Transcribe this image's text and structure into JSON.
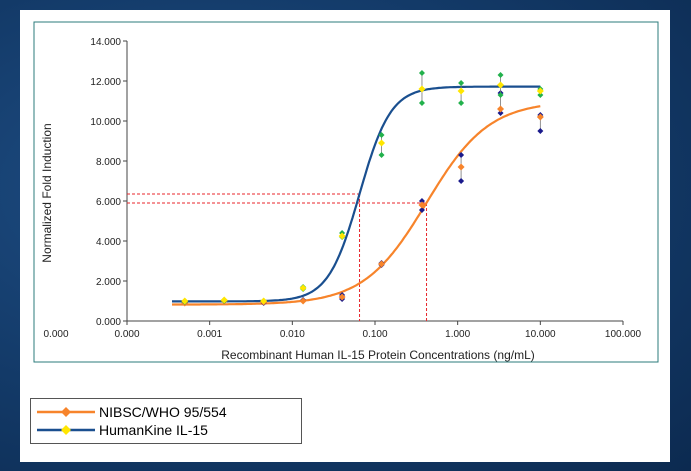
{
  "chart_data": {
    "type": "scatter",
    "title": "",
    "xlabel": "Recombinant Human IL-15 Protein Concentrations (ng/mL)",
    "ylabel": "Normalized Fold Induction",
    "x_scale": "log",
    "xlim": [
      0.0001,
      100
    ],
    "ylim": [
      0,
      14
    ],
    "x_tick_values": [
      0.0001,
      0.001,
      0.01,
      0.1,
      1,
      10,
      100
    ],
    "x_tick_labels": [
      "0.000",
      "0.000",
      "0.001",
      "0.010",
      "0.100",
      "1.000",
      "10.000",
      "100.000"
    ],
    "x_tick_positions": [
      0.0001,
      0.0001,
      0.001,
      0.01,
      0.1,
      1,
      10,
      100
    ],
    "y_ticks": [
      0,
      2,
      4,
      6,
      8,
      10,
      12,
      14
    ],
    "y_tick_labels": [
      "0.000",
      "2.000",
      "4.000",
      "6.000",
      "8.000",
      "10.000",
      "12.000",
      "14.000"
    ],
    "grid": false,
    "legend_position": "bottom-left outside",
    "series": [
      {
        "name": "NIBSC/WHO 95/554",
        "color": "#f7842b",
        "marker_color": "#f7842b",
        "replicate_color": "#1a1a8c",
        "x": [
          0.0005,
          0.0015,
          0.0045,
          0.0135,
          0.04,
          0.12,
          0.37,
          1.1,
          3.3,
          10
        ],
        "y": [
          0.9,
          1.0,
          0.95,
          1.0,
          1.2,
          2.85,
          5.8,
          7.7,
          10.6,
          10.2
        ],
        "y_replicates": [
          [
            0.95,
            0.9
          ],
          [
            1.0,
            1.05
          ],
          [
            0.9,
            1.0
          ],
          [
            1.0,
            1.05
          ],
          [
            1.1,
            1.3
          ],
          [
            2.8,
            2.9
          ],
          [
            5.55,
            6.0
          ],
          [
            7.0,
            8.3
          ],
          [
            10.4,
            11.4
          ],
          [
            9.5,
            10.3
          ]
        ],
        "fit": {
          "bottom": 0.82,
          "top": 11.0,
          "ec50": 0.42,
          "hill": 1.15
        },
        "ec50_marker": {
          "x": 0.42,
          "y": 5.9
        }
      },
      {
        "name": "HumanKine IL-15",
        "color": "#1a4f8f",
        "marker_color": "#ffe600",
        "replicate_color": "#22b14c",
        "x": [
          0.0005,
          0.0015,
          0.0045,
          0.0135,
          0.04,
          0.12,
          0.37,
          1.1,
          3.3,
          10
        ],
        "y": [
          1.0,
          1.05,
          1.0,
          1.65,
          4.25,
          8.9,
          11.6,
          11.5,
          11.8,
          11.5
        ],
        "y_replicates": [
          [
            1.0,
            0.95
          ],
          [
            1.0,
            1.05
          ],
          [
            1.0,
            1.0
          ],
          [
            1.6,
            1.7
          ],
          [
            4.2,
            4.4
          ],
          [
            8.3,
            9.3
          ],
          [
            10.9,
            12.4
          ],
          [
            10.9,
            11.9
          ],
          [
            11.3,
            12.3
          ],
          [
            11.3,
            11.6
          ]
        ],
        "fit": {
          "bottom": 0.98,
          "top": 11.72,
          "ec50": 0.065,
          "hill": 2.3
        },
        "ec50_marker": {
          "x": 0.065,
          "y": 6.35
        }
      }
    ],
    "ec50_line_color": "#e8262b"
  }
}
